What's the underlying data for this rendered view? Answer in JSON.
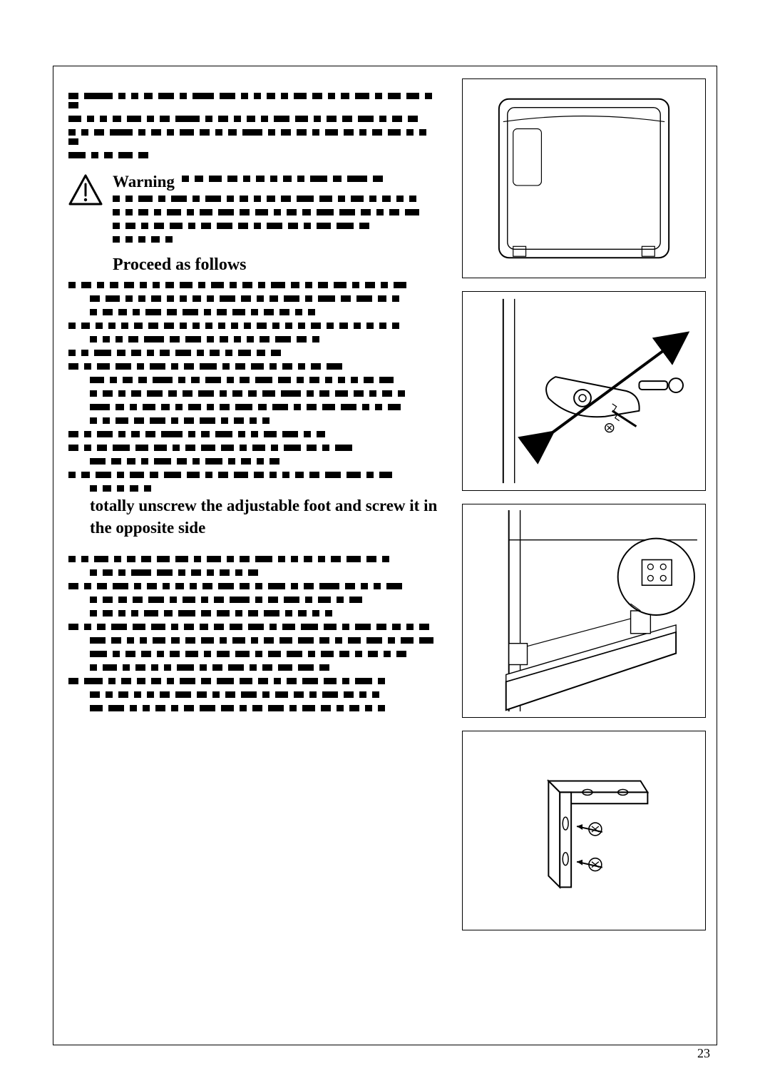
{
  "page_number": "23",
  "warning_label": "Warning",
  "proceed_heading": "Proceed as follows",
  "bold_instruction_prefix": "",
  "bold_instruction": "totally unscrew the adjustable foot and screw it in the opposite side",
  "colors": {
    "text": "#000000",
    "background": "#ffffff",
    "border": "#000000",
    "hatch": "#000000"
  },
  "intro_lines": [
    [
      14,
      40,
      10,
      10,
      12,
      22,
      10,
      30,
      22,
      10,
      10,
      12,
      10,
      18,
      14,
      10,
      12,
      20,
      10,
      18,
      18,
      10,
      14
    ],
    [
      18,
      10,
      10,
      12,
      20,
      10,
      14,
      34,
      10,
      14,
      10,
      12,
      10,
      22,
      18,
      10,
      14,
      14,
      22,
      10,
      14,
      14
    ],
    [
      10,
      10,
      14,
      32,
      10,
      14,
      10,
      20,
      14,
      10,
      12,
      28,
      10,
      14,
      14,
      10,
      18,
      14,
      10,
      14,
      18,
      10,
      10,
      14
    ],
    [
      24,
      10,
      12,
      20,
      14
    ]
  ],
  "warning_lines": [
    [
      10,
      12,
      18,
      14,
      10,
      12,
      10,
      12,
      10,
      24,
      12,
      28,
      14
    ],
    [
      10,
      10,
      20,
      10,
      22,
      10,
      22,
      10,
      12,
      10,
      12,
      14,
      24,
      18,
      10,
      18,
      10,
      12,
      10,
      10
    ],
    [
      10,
      10,
      14,
      10,
      20,
      10,
      18,
      22,
      14,
      18,
      10,
      14,
      12,
      24,
      22,
      14,
      10,
      14,
      20
    ],
    [
      10,
      14,
      10,
      14,
      18,
      10,
      14,
      22,
      14,
      10,
      22,
      14,
      10,
      20,
      24,
      14
    ],
    [
      10,
      10,
      10,
      12,
      10
    ]
  ],
  "steps": [
    {
      "first": [
        10,
        14,
        10,
        12,
        14,
        10,
        10,
        12,
        18,
        10,
        18,
        10,
        14,
        10,
        20,
        12,
        10,
        14,
        18,
        10,
        14,
        10,
        18
      ],
      "body": [
        [
          14,
          20,
          10,
          10,
          14,
          10,
          10,
          12,
          10,
          22,
          14,
          10,
          12,
          22,
          10,
          24,
          14,
          22,
          12,
          10
        ],
        [
          10,
          14,
          12,
          10,
          22,
          14,
          22,
          10,
          14,
          18,
          10,
          14,
          14,
          10,
          10
        ]
      ]
    },
    {
      "first": [
        10,
        12,
        10,
        10,
        10,
        12,
        14,
        14,
        10,
        10,
        10,
        10,
        10,
        10,
        14,
        10,
        10,
        10,
        14,
        10,
        12,
        10,
        10,
        10,
        10
      ],
      "body": [
        [
          10,
          10,
          10,
          14,
          28,
          14,
          22,
          10,
          12,
          10,
          10,
          14,
          22,
          14,
          10
        ]
      ]
    },
    {
      "first": [
        10,
        10,
        24,
        12,
        14,
        10,
        14,
        22,
        10,
        14,
        10,
        18,
        12,
        14
      ],
      "body": []
    },
    {
      "first": [
        14,
        10,
        18,
        22,
        10,
        22,
        10,
        14,
        24,
        10,
        14,
        18,
        10,
        14,
        10,
        14,
        22
      ],
      "body": [
        [
          20,
          10,
          14,
          12,
          28,
          10,
          12,
          22,
          10,
          14,
          24,
          18,
          10,
          14,
          10,
          10,
          10,
          14,
          20
        ],
        [
          10,
          14,
          10,
          14,
          22,
          12,
          14,
          22,
          10,
          14,
          12,
          18,
          28,
          10,
          14,
          18,
          14,
          10,
          14,
          10
        ],
        [
          28,
          12,
          10,
          18,
          12,
          10,
          18,
          10,
          14,
          24,
          12,
          22,
          10,
          14,
          18,
          22,
          10,
          10,
          18
        ],
        [
          10,
          10,
          18,
          14,
          22,
          10,
          14,
          22,
          10,
          14,
          10,
          10
        ]
      ]
    },
    {
      "first": [
        14,
        10,
        22,
        10,
        12,
        14,
        30,
        10,
        12,
        24,
        10,
        10,
        18,
        22,
        10,
        12
      ],
      "body": []
    },
    {
      "first": [
        14,
        10,
        14,
        24,
        18,
        18,
        10,
        14,
        20,
        18,
        10,
        18,
        10,
        24,
        14,
        10,
        24
      ],
      "body": [
        [
          22,
          14,
          12,
          10,
          24,
          14,
          10,
          24,
          10,
          14,
          10,
          14
        ]
      ]
    },
    {
      "first": [
        10,
        12,
        22,
        10,
        20,
        12,
        24,
        18,
        10,
        14,
        20,
        14,
        10,
        10,
        12,
        14,
        22,
        20,
        10,
        18
      ],
      "body": []
    },
    {
      "first": [
        10,
        10,
        20,
        10,
        12,
        14,
        18,
        18,
        10,
        20,
        10,
        14,
        24,
        10,
        10,
        12,
        10,
        14,
        20,
        14,
        10
      ],
      "body": [
        [
          10,
          14,
          10,
          28,
          22,
          10,
          14,
          10,
          14,
          10,
          14
        ]
      ]
    },
    {
      "first": [
        14,
        10,
        14,
        22,
        10,
        14,
        10,
        12,
        10,
        14,
        22,
        14,
        10,
        24,
        10,
        14,
        28,
        14,
        10,
        10,
        22
      ],
      "body": [
        [
          10,
          14,
          12,
          14,
          22,
          10,
          18,
          10,
          14,
          28,
          10,
          14,
          22,
          10,
          18,
          10,
          18
        ],
        [
          10,
          14,
          10,
          10,
          20,
          12,
          24,
          14,
          18,
          10,
          14,
          22,
          10,
          12,
          10,
          10
        ]
      ]
    },
    {
      "first": [
        14,
        10,
        12,
        22,
        18,
        20,
        10,
        14,
        12,
        14,
        18,
        22,
        10,
        18,
        24,
        18,
        10,
        22,
        14,
        12,
        10,
        14
      ],
      "body": [
        [
          22,
          14,
          10,
          10,
          18,
          12,
          14,
          18,
          10,
          18,
          10,
          14,
          18,
          22,
          14,
          10,
          18,
          22,
          10,
          18,
          20
        ],
        [
          24,
          10,
          14,
          14,
          10,
          14,
          18,
          10,
          18,
          20,
          10,
          18,
          22,
          10,
          18,
          14,
          10,
          14,
          10,
          14
        ],
        [
          10,
          20,
          10,
          14,
          10,
          10,
          24,
          10,
          14,
          22,
          10,
          14,
          20,
          22,
          14
        ]
      ]
    },
    {
      "first": [
        14,
        26,
        10,
        14,
        12,
        14,
        10,
        22,
        14,
        24,
        18,
        14,
        10,
        14,
        22,
        18,
        10,
        24,
        10
      ],
      "body": [
        [
          14,
          10,
          14,
          10,
          10,
          14,
          22,
          14,
          10,
          14,
          22,
          10,
          18,
          14,
          10,
          22,
          14,
          10,
          10
        ],
        [
          18,
          22,
          10,
          10,
          14,
          10,
          14,
          22,
          18,
          10,
          14,
          22,
          10,
          18,
          14,
          10,
          14,
          10,
          10
        ]
      ]
    }
  ]
}
